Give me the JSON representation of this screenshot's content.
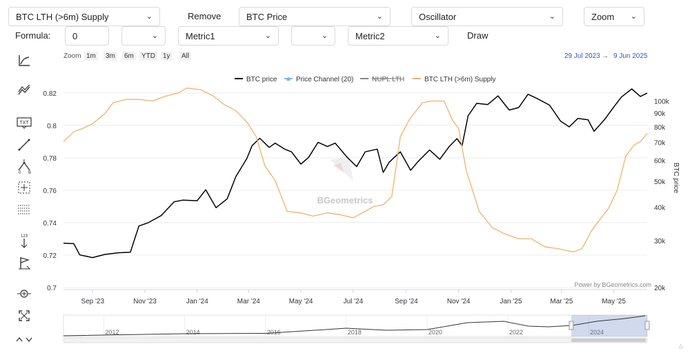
{
  "controls": {
    "metric_select": "BTC LTH (>6m) Supply",
    "remove_label": "Remove",
    "price_select": "BTC Price",
    "oscillator_select": "Oscillator",
    "zoom_select": "Zoom",
    "formula_label": "Formula:",
    "formula_value": "0",
    "metric1_select": "Metric1",
    "metric2_select": "Metric2",
    "draw_label": "Draw"
  },
  "range_selector": {
    "label": "Zoom",
    "buttons": [
      "1m",
      "3m",
      "6m",
      "YTD",
      "1y",
      "All"
    ],
    "from": "29 Jul 2023",
    "arrow": "→",
    "to": "9 Jun 2025"
  },
  "credits": "Power by BGeometrics.com",
  "watermark": "BGeometrics",
  "navigator_years": [
    "2012",
    "2014",
    "2016",
    "2018",
    "2020",
    "2022",
    "2024"
  ],
  "icons": [
    "trend-line-icon",
    "pattern-icon",
    "text-annotation-icon",
    "line-draw-icon",
    "fibonacci-icon",
    "crosshair-icon",
    "grid-measure-icon",
    "vertical-counter-icon",
    "flag-icon",
    "zoom-target-icon",
    "fullscreen-icon",
    "collapse-icon"
  ],
  "chart_data": {
    "type": "line",
    "title": "",
    "x_ticks": [
      "Sep '23",
      "Nov '23",
      "Jan '24",
      "Mar '24",
      "May '24",
      "Jul '24",
      "Sep '24",
      "Nov '24",
      "Jan '25",
      "Mar '25",
      "May '25"
    ],
    "y_left_ticks": [
      "0.82",
      "0.8",
      "0.78",
      "0.76",
      "0.74",
      "0.72",
      "0.7"
    ],
    "y_left_range": [
      0.7,
      0.825
    ],
    "y_right_label": "BTC price",
    "y_right_ticks": [
      "100k",
      "90k",
      "80k",
      "70k",
      "60k",
      "50k",
      "40k",
      "30k",
      "20k"
    ],
    "y_right_scale": "log",
    "y_right_range": [
      20000,
      115000
    ],
    "legend": [
      {
        "name": "BTC price",
        "color": "#000000",
        "symbol": "line",
        "visible": true
      },
      {
        "name": "Price Channel (20)",
        "color": "#7cb5ec",
        "symbol": "triangle",
        "visible": true
      },
      {
        "name": "NUPL LTH",
        "color": "#555555",
        "symbol": "line",
        "visible": false
      },
      {
        "name": "BTC LTH (>6m) Supply",
        "color": "#f0b26b",
        "symbol": "line",
        "visible": true
      }
    ],
    "legend_position": "top-center",
    "grid": true,
    "series": [
      {
        "name": "BTC price",
        "axis": "right",
        "color": "#000000",
        "x": [
          "2023-07-29",
          "2023-08-10",
          "2023-08-17",
          "2023-09-01",
          "2023-09-15",
          "2023-10-01",
          "2023-10-15",
          "2023-10-25",
          "2023-11-05",
          "2023-11-20",
          "2023-12-05",
          "2023-12-15",
          "2024-01-01",
          "2024-01-11",
          "2024-01-23",
          "2024-02-05",
          "2024-02-15",
          "2024-02-28",
          "2024-03-05",
          "2024-03-14",
          "2024-03-25",
          "2024-04-01",
          "2024-04-12",
          "2024-04-20",
          "2024-05-01",
          "2024-05-10",
          "2024-05-21",
          "2024-06-01",
          "2024-06-10",
          "2024-06-24",
          "2024-07-05",
          "2024-07-15",
          "2024-07-29",
          "2024-08-05",
          "2024-08-12",
          "2024-08-25",
          "2024-09-06",
          "2024-09-15",
          "2024-09-28",
          "2024-10-10",
          "2024-10-21",
          "2024-10-30",
          "2024-11-05",
          "2024-11-12",
          "2024-11-22",
          "2024-12-05",
          "2024-12-17",
          "2024-12-30",
          "2025-01-10",
          "2025-01-21",
          "2025-02-01",
          "2025-02-15",
          "2025-02-28",
          "2025-03-10",
          "2025-03-20",
          "2025-04-01",
          "2025-04-08",
          "2025-04-20",
          "2025-05-01",
          "2025-05-10",
          "2025-05-22",
          "2025-06-01",
          "2025-06-09"
        ],
        "y": [
          29300,
          29200,
          26500,
          25900,
          26600,
          27000,
          27100,
          34000,
          35000,
          37200,
          41900,
          42500,
          42300,
          46500,
          39800,
          43000,
          52000,
          61000,
          68000,
          72500,
          67000,
          69500,
          66000,
          64500,
          58000,
          61500,
          70000,
          67500,
          69500,
          61500,
          56800,
          64500,
          66000,
          54000,
          59000,
          64500,
          55000,
          59500,
          65500,
          60500,
          67500,
          72300,
          68000,
          88000,
          98000,
          97000,
          104500,
          92500,
          94500,
          106000,
          102000,
          96500,
          84000,
          80000,
          86000,
          85000,
          77000,
          85000,
          95000,
          103500,
          111000,
          104000,
          107000
        ]
      },
      {
        "name": "BTC LTH (>6m) Supply",
        "axis": "left",
        "color": "#f0b26b",
        "x": [
          "2023-07-29",
          "2023-08-10",
          "2023-08-20",
          "2023-09-01",
          "2023-09-15",
          "2023-09-25",
          "2023-10-10",
          "2023-10-25",
          "2023-11-10",
          "2023-11-25",
          "2023-12-10",
          "2023-12-20",
          "2024-01-05",
          "2024-01-20",
          "2024-02-01",
          "2024-02-15",
          "2024-02-28",
          "2024-03-10",
          "2024-03-20",
          "2024-04-01",
          "2024-04-15",
          "2024-05-01",
          "2024-05-15",
          "2024-06-01",
          "2024-06-15",
          "2024-07-01",
          "2024-07-15",
          "2024-07-25",
          "2024-08-05",
          "2024-08-15",
          "2024-08-25",
          "2024-09-05",
          "2024-09-20",
          "2024-10-01",
          "2024-10-15",
          "2024-10-25",
          "2024-11-01",
          "2024-11-10",
          "2024-11-25",
          "2024-12-10",
          "2024-12-25",
          "2025-01-10",
          "2025-01-25",
          "2025-02-10",
          "2025-02-25",
          "2025-03-05",
          "2025-03-15",
          "2025-03-25",
          "2025-04-05",
          "2025-04-15",
          "2025-04-25",
          "2025-05-05",
          "2025-05-15",
          "2025-05-25",
          "2025-06-01",
          "2025-06-09"
        ],
        "y": [
          0.79,
          0.796,
          0.798,
          0.801,
          0.807,
          0.814,
          0.816,
          0.816,
          0.815,
          0.818,
          0.82,
          0.823,
          0.822,
          0.818,
          0.813,
          0.809,
          0.802,
          0.793,
          0.775,
          0.766,
          0.747,
          0.746,
          0.744,
          0.746,
          0.745,
          0.743,
          0.747,
          0.75,
          0.751,
          0.756,
          0.793,
          0.804,
          0.814,
          0.815,
          0.815,
          0.803,
          0.798,
          0.772,
          0.747,
          0.737,
          0.733,
          0.73,
          0.73,
          0.725,
          0.724,
          0.723,
          0.722,
          0.724,
          0.735,
          0.742,
          0.749,
          0.76,
          0.781,
          0.788,
          0.79,
          0.795
        ]
      }
    ],
    "navigator": {
      "x_range": [
        "2011",
        "2025"
      ],
      "selected": [
        "2023-07-29",
        "2025-06-09"
      ]
    }
  }
}
